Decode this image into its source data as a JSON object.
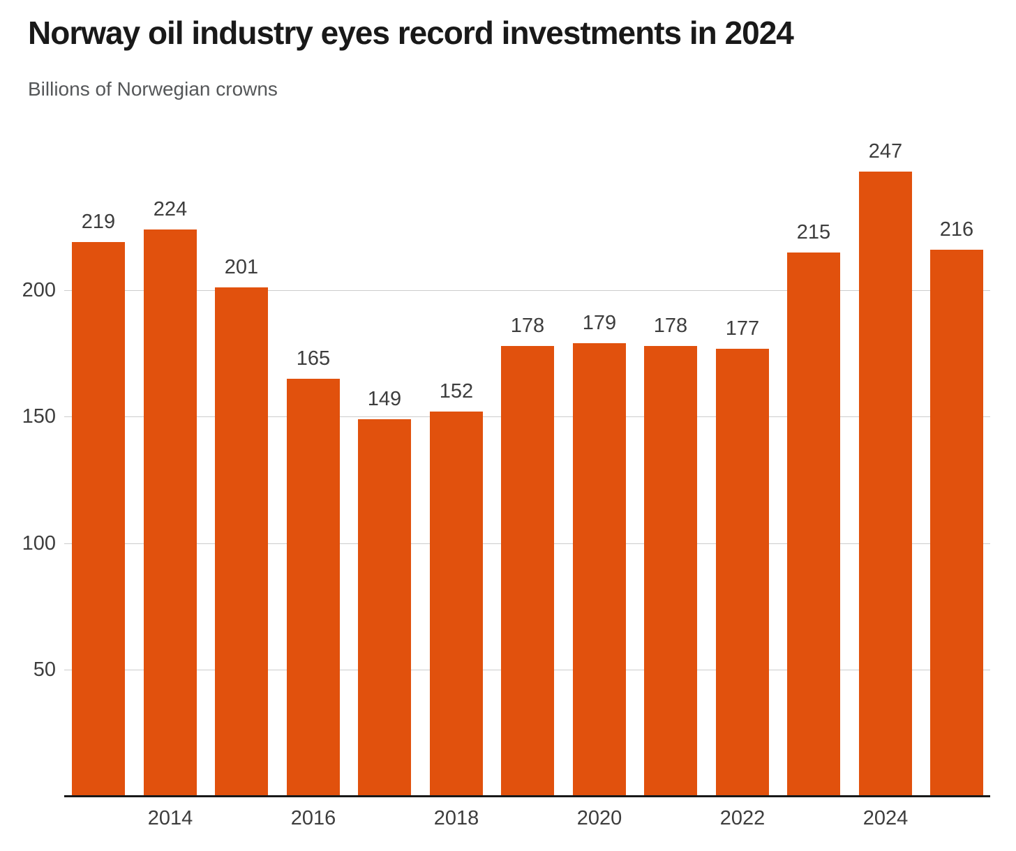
{
  "header": {
    "title": "Norway oil industry eyes record investments in 2024",
    "subtitle": "Billions of Norwegian crowns"
  },
  "chart_data": {
    "type": "bar",
    "title": "Norway oil industry eyes record investments in 2024",
    "ylabel": "Billions of Norwegian crowns",
    "xlabel": "",
    "categories": [
      2013,
      2014,
      2015,
      2016,
      2017,
      2018,
      2019,
      2020,
      2021,
      2022,
      2023,
      2024,
      2025
    ],
    "values": [
      219,
      224,
      201,
      165,
      149,
      152,
      178,
      179,
      178,
      177,
      215,
      247,
      216
    ],
    "bar_value_labels": [
      "219",
      "224",
      "201",
      "165",
      "149",
      "152",
      "178",
      "179",
      "178",
      "177",
      "215",
      "247",
      "216"
    ],
    "x_tick_labels": [
      "2014",
      "2016",
      "2018",
      "2020",
      "2022",
      "2024"
    ],
    "x_tick_years": [
      2014,
      2016,
      2018,
      2020,
      2022,
      2024
    ],
    "y_ticks": [
      50,
      100,
      150,
      200
    ],
    "y_tick_labels": [
      "50",
      "100",
      "150",
      "200"
    ],
    "ylim": [
      0,
      260
    ],
    "grid": true,
    "legend": false,
    "colors": {
      "bar": "#e1510d",
      "gridline": "#cccccc",
      "axis_line": "#191919",
      "tick_label": "#3d3d3d",
      "title": "#191919",
      "subtitle": "#555759",
      "background": "#ffffff"
    }
  }
}
